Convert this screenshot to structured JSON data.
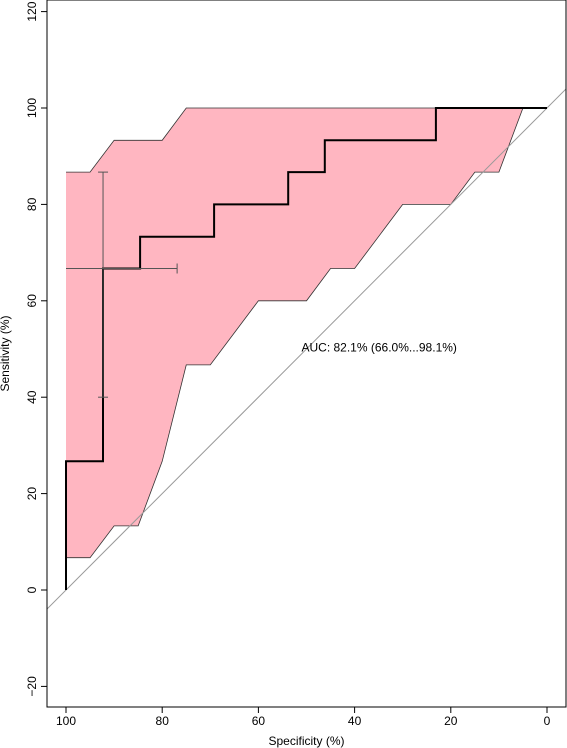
{
  "chart_data": {
    "type": "line",
    "title": "",
    "xlabel": "Specificity (%)",
    "ylabel": "Sensitivity (%)",
    "x_reversed": true,
    "xlim": [
      100,
      0
    ],
    "ylim": [
      -20,
      120
    ],
    "x_ticks": [
      "100",
      "80",
      "60",
      "40",
      "20",
      "0"
    ],
    "y_ticks": [
      "−20",
      "0",
      "20",
      "40",
      "60",
      "80",
      "100",
      "120"
    ],
    "grid": false,
    "legend": "none",
    "colors": {
      "ci_band": "#ffb6c1",
      "roc_line": "#000000",
      "diagonal": "#999999"
    },
    "annotation": "AUC: 82.1% (66.0%...98.1%)",
    "series": [
      {
        "kind": "roc-curve",
        "points": [
          [
            100,
            0
          ],
          [
            100,
            26.7
          ],
          [
            92.3,
            26.7
          ],
          [
            92.3,
            66.7
          ],
          [
            84.6,
            66.7
          ],
          [
            84.6,
            73.3
          ],
          [
            69.2,
            73.3
          ],
          [
            69.2,
            80
          ],
          [
            53.8,
            80
          ],
          [
            53.8,
            86.7
          ],
          [
            46.2,
            86.7
          ],
          [
            46.2,
            93.3
          ],
          [
            23.1,
            93.3
          ],
          [
            23.1,
            100
          ],
          [
            0,
            100
          ]
        ]
      },
      {
        "kind": "ci-band-upper",
        "points": [
          [
            100,
            86.7
          ],
          [
            95,
            86.7
          ],
          [
            90,
            93.3
          ],
          [
            80,
            93.3
          ],
          [
            75,
            100
          ],
          [
            5,
            100
          ]
        ]
      },
      {
        "kind": "ci-band-lower",
        "points": [
          [
            100,
            6.7
          ],
          [
            95,
            6.7
          ],
          [
            90,
            13.3
          ],
          [
            85,
            13.3
          ],
          [
            80,
            26.7
          ],
          [
            75,
            46.7
          ],
          [
            70,
            46.7
          ],
          [
            60,
            60
          ],
          [
            50,
            60
          ],
          [
            45,
            66.7
          ],
          [
            40,
            66.7
          ],
          [
            30,
            80
          ],
          [
            20,
            80
          ],
          [
            15,
            86.7
          ],
          [
            10,
            86.7
          ],
          [
            5,
            100
          ]
        ]
      },
      {
        "kind": "reference-diagonal",
        "points": [
          [
            120,
            -20
          ],
          [
            -20,
            120
          ]
        ]
      }
    ],
    "ci_crosshair": {
      "x": 92.3,
      "y": 66.7,
      "x_range": [
        100,
        76.9
      ],
      "y_range": [
        40,
        86.7
      ]
    }
  }
}
